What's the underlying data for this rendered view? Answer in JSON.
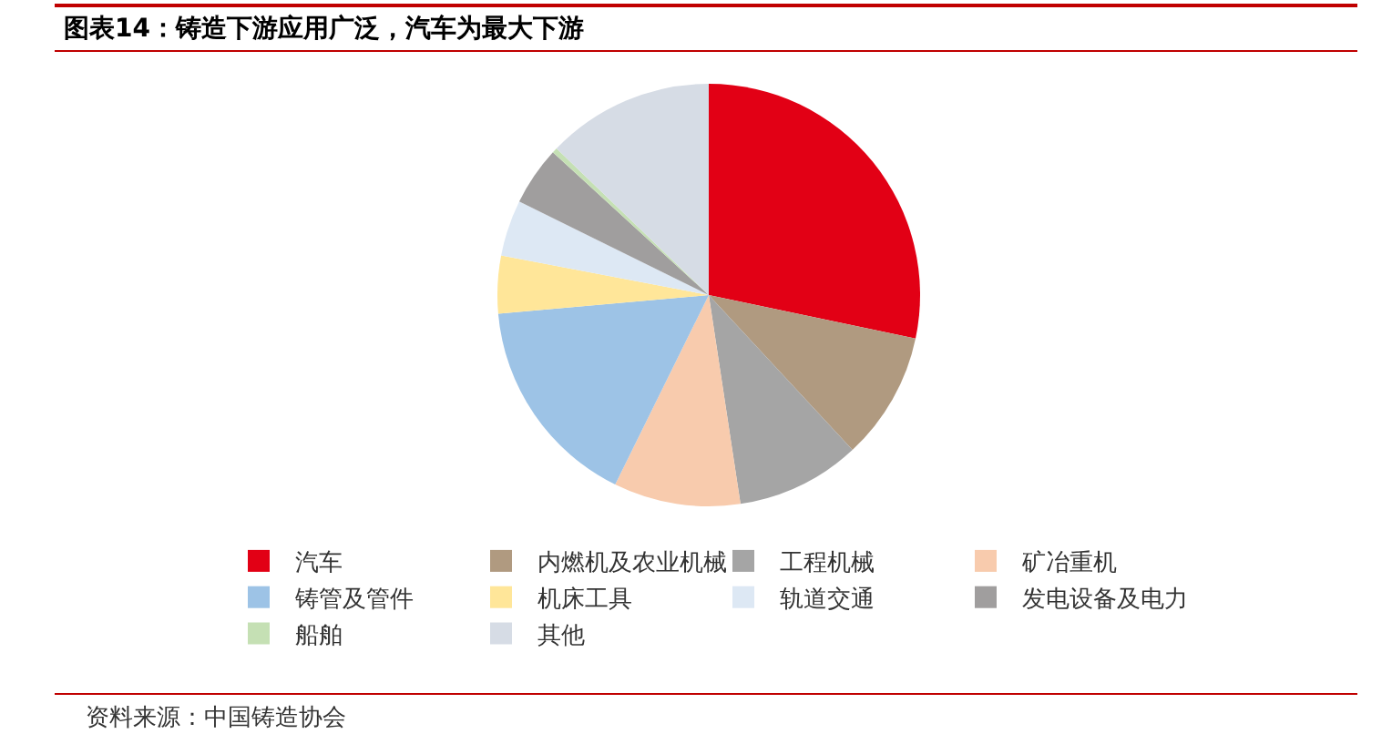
{
  "chart_data": {
    "type": "pie",
    "title": "图表14：铸造下游应用广泛，汽车为最大下游",
    "categories": [
      "汽车",
      "内燃机及农业机械",
      "工程机械",
      "矿冶重机",
      "铸管及管件",
      "机床工具",
      "轨道交通",
      "发电设备及电力",
      "船舶",
      "其他"
    ],
    "values": [
      28.3,
      9.8,
      9.5,
      9.7,
      16.3,
      4.4,
      4.3,
      4.5,
      0.4,
      12.8
    ],
    "colors": [
      "#e20015",
      "#b09a80",
      "#a5a5a5",
      "#f8cbad",
      "#9dc3e6",
      "#ffe699",
      "#dde8f4",
      "#a09e9e",
      "#c5e0b4",
      "#d6dce5"
    ],
    "legend": "bottom",
    "annotations": [
      "资料来源：中国铸造协会"
    ]
  }
}
